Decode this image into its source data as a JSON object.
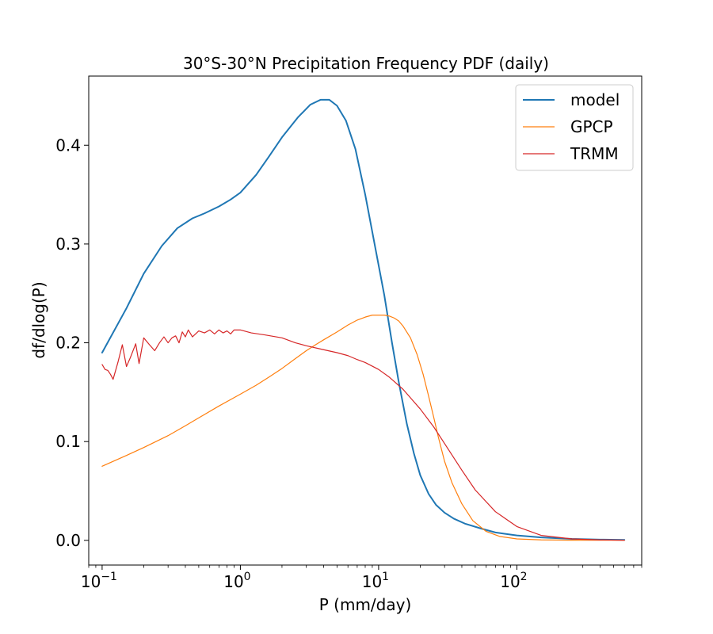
{
  "chart_data": {
    "type": "line",
    "title": "30°S-30°N Precipitation Frequency PDF (daily)",
    "xlabel": "P (mm/day)",
    "ylabel": "df/dlog(P)",
    "xscale": "log",
    "xlim": [
      0.08,
      800
    ],
    "ylim": [
      -0.025,
      0.47
    ],
    "xticks": [
      {
        "value": 0.1,
        "base": "10",
        "exp": "−1"
      },
      {
        "value": 1,
        "base": "10",
        "exp": "0"
      },
      {
        "value": 10,
        "base": "10",
        "exp": "1"
      },
      {
        "value": 100,
        "base": "10",
        "exp": "2"
      }
    ],
    "yticks": [
      {
        "value": 0.0,
        "label": "0.0"
      },
      {
        "value": 0.1,
        "label": "0.1"
      },
      {
        "value": 0.2,
        "label": "0.2"
      },
      {
        "value": 0.3,
        "label": "0.3"
      },
      {
        "value": 0.4,
        "label": "0.4"
      }
    ],
    "legend": {
      "position": "top-right"
    },
    "series": [
      {
        "name": "model",
        "color": "#1f77b4",
        "width": 2,
        "x": [
          0.1,
          0.15,
          0.2,
          0.27,
          0.35,
          0.45,
          0.55,
          0.7,
          0.85,
          1.0,
          1.3,
          1.6,
          2.0,
          2.6,
          3.2,
          3.8,
          4.4,
          5.0,
          5.8,
          6.8,
          8.0,
          9.5,
          11.0,
          12.5,
          14.0,
          16.0,
          18.0,
          20.0,
          23.0,
          26.0,
          30.0,
          35.0,
          42.0,
          55.0,
          70.0,
          100.0,
          150.0,
          250.0,
          400.0,
          600.0
        ],
        "y": [
          0.19,
          0.235,
          0.27,
          0.298,
          0.316,
          0.326,
          0.331,
          0.338,
          0.345,
          0.352,
          0.37,
          0.388,
          0.408,
          0.428,
          0.441,
          0.446,
          0.446,
          0.44,
          0.425,
          0.396,
          0.35,
          0.295,
          0.248,
          0.2,
          0.16,
          0.118,
          0.088,
          0.066,
          0.047,
          0.036,
          0.028,
          0.022,
          0.017,
          0.012,
          0.008,
          0.005,
          0.003,
          0.0015,
          0.0008,
          0.0005
        ]
      },
      {
        "name": "GPCP",
        "color": "#ff7f0e",
        "width": 1.2,
        "x": [
          0.1,
          0.15,
          0.2,
          0.3,
          0.4,
          0.5,
          0.7,
          1.0,
          1.3,
          1.6,
          2.0,
          2.5,
          3.0,
          3.5,
          4.0,
          5.0,
          6.0,
          7.0,
          8.0,
          9.0,
          10.0,
          11.0,
          12.0,
          13.0,
          14.0,
          15.0,
          17.0,
          19.0,
          21.0,
          23.0,
          25.0,
          27.0,
          30.0,
          34.0,
          40.0,
          48.0,
          60.0,
          75.0,
          100.0,
          150.0,
          250.0,
          400.0,
          600.0
        ],
        "y": [
          0.075,
          0.086,
          0.094,
          0.106,
          0.116,
          0.124,
          0.136,
          0.148,
          0.157,
          0.165,
          0.174,
          0.184,
          0.192,
          0.198,
          0.203,
          0.211,
          0.218,
          0.223,
          0.226,
          0.228,
          0.228,
          0.228,
          0.227,
          0.225,
          0.222,
          0.217,
          0.205,
          0.188,
          0.168,
          0.146,
          0.125,
          0.105,
          0.08,
          0.058,
          0.037,
          0.02,
          0.009,
          0.004,
          0.0015,
          0.0005,
          0.0002,
          0.0001,
          0.0001
        ]
      },
      {
        "name": "TRMM",
        "color": "#d62728",
        "width": 1.2,
        "x": [
          0.1,
          0.105,
          0.11,
          0.115,
          0.12,
          0.13,
          0.14,
          0.15,
          0.16,
          0.175,
          0.185,
          0.2,
          0.22,
          0.24,
          0.26,
          0.28,
          0.3,
          0.32,
          0.34,
          0.36,
          0.38,
          0.4,
          0.42,
          0.45,
          0.5,
          0.55,
          0.6,
          0.65,
          0.7,
          0.75,
          0.8,
          0.85,
          0.9,
          1.0,
          1.2,
          1.5,
          2.0,
          2.5,
          3.0,
          4.0,
          5.0,
          6.0,
          7.0,
          8.0,
          10.0,
          12.0,
          15.0,
          20.0,
          25.0,
          30.0,
          40.0,
          50.0,
          70.0,
          100.0,
          150.0,
          250.0,
          400.0,
          600.0
        ],
        "y": [
          0.178,
          0.173,
          0.172,
          0.168,
          0.163,
          0.18,
          0.198,
          0.176,
          0.185,
          0.199,
          0.179,
          0.205,
          0.198,
          0.192,
          0.2,
          0.206,
          0.2,
          0.205,
          0.207,
          0.2,
          0.211,
          0.206,
          0.213,
          0.206,
          0.212,
          0.21,
          0.213,
          0.209,
          0.213,
          0.21,
          0.212,
          0.209,
          0.213,
          0.213,
          0.21,
          0.208,
          0.205,
          0.2,
          0.197,
          0.193,
          0.19,
          0.187,
          0.183,
          0.18,
          0.173,
          0.165,
          0.153,
          0.133,
          0.115,
          0.098,
          0.071,
          0.051,
          0.029,
          0.014,
          0.005,
          0.0015,
          0.0005,
          0.0002
        ]
      }
    ]
  }
}
